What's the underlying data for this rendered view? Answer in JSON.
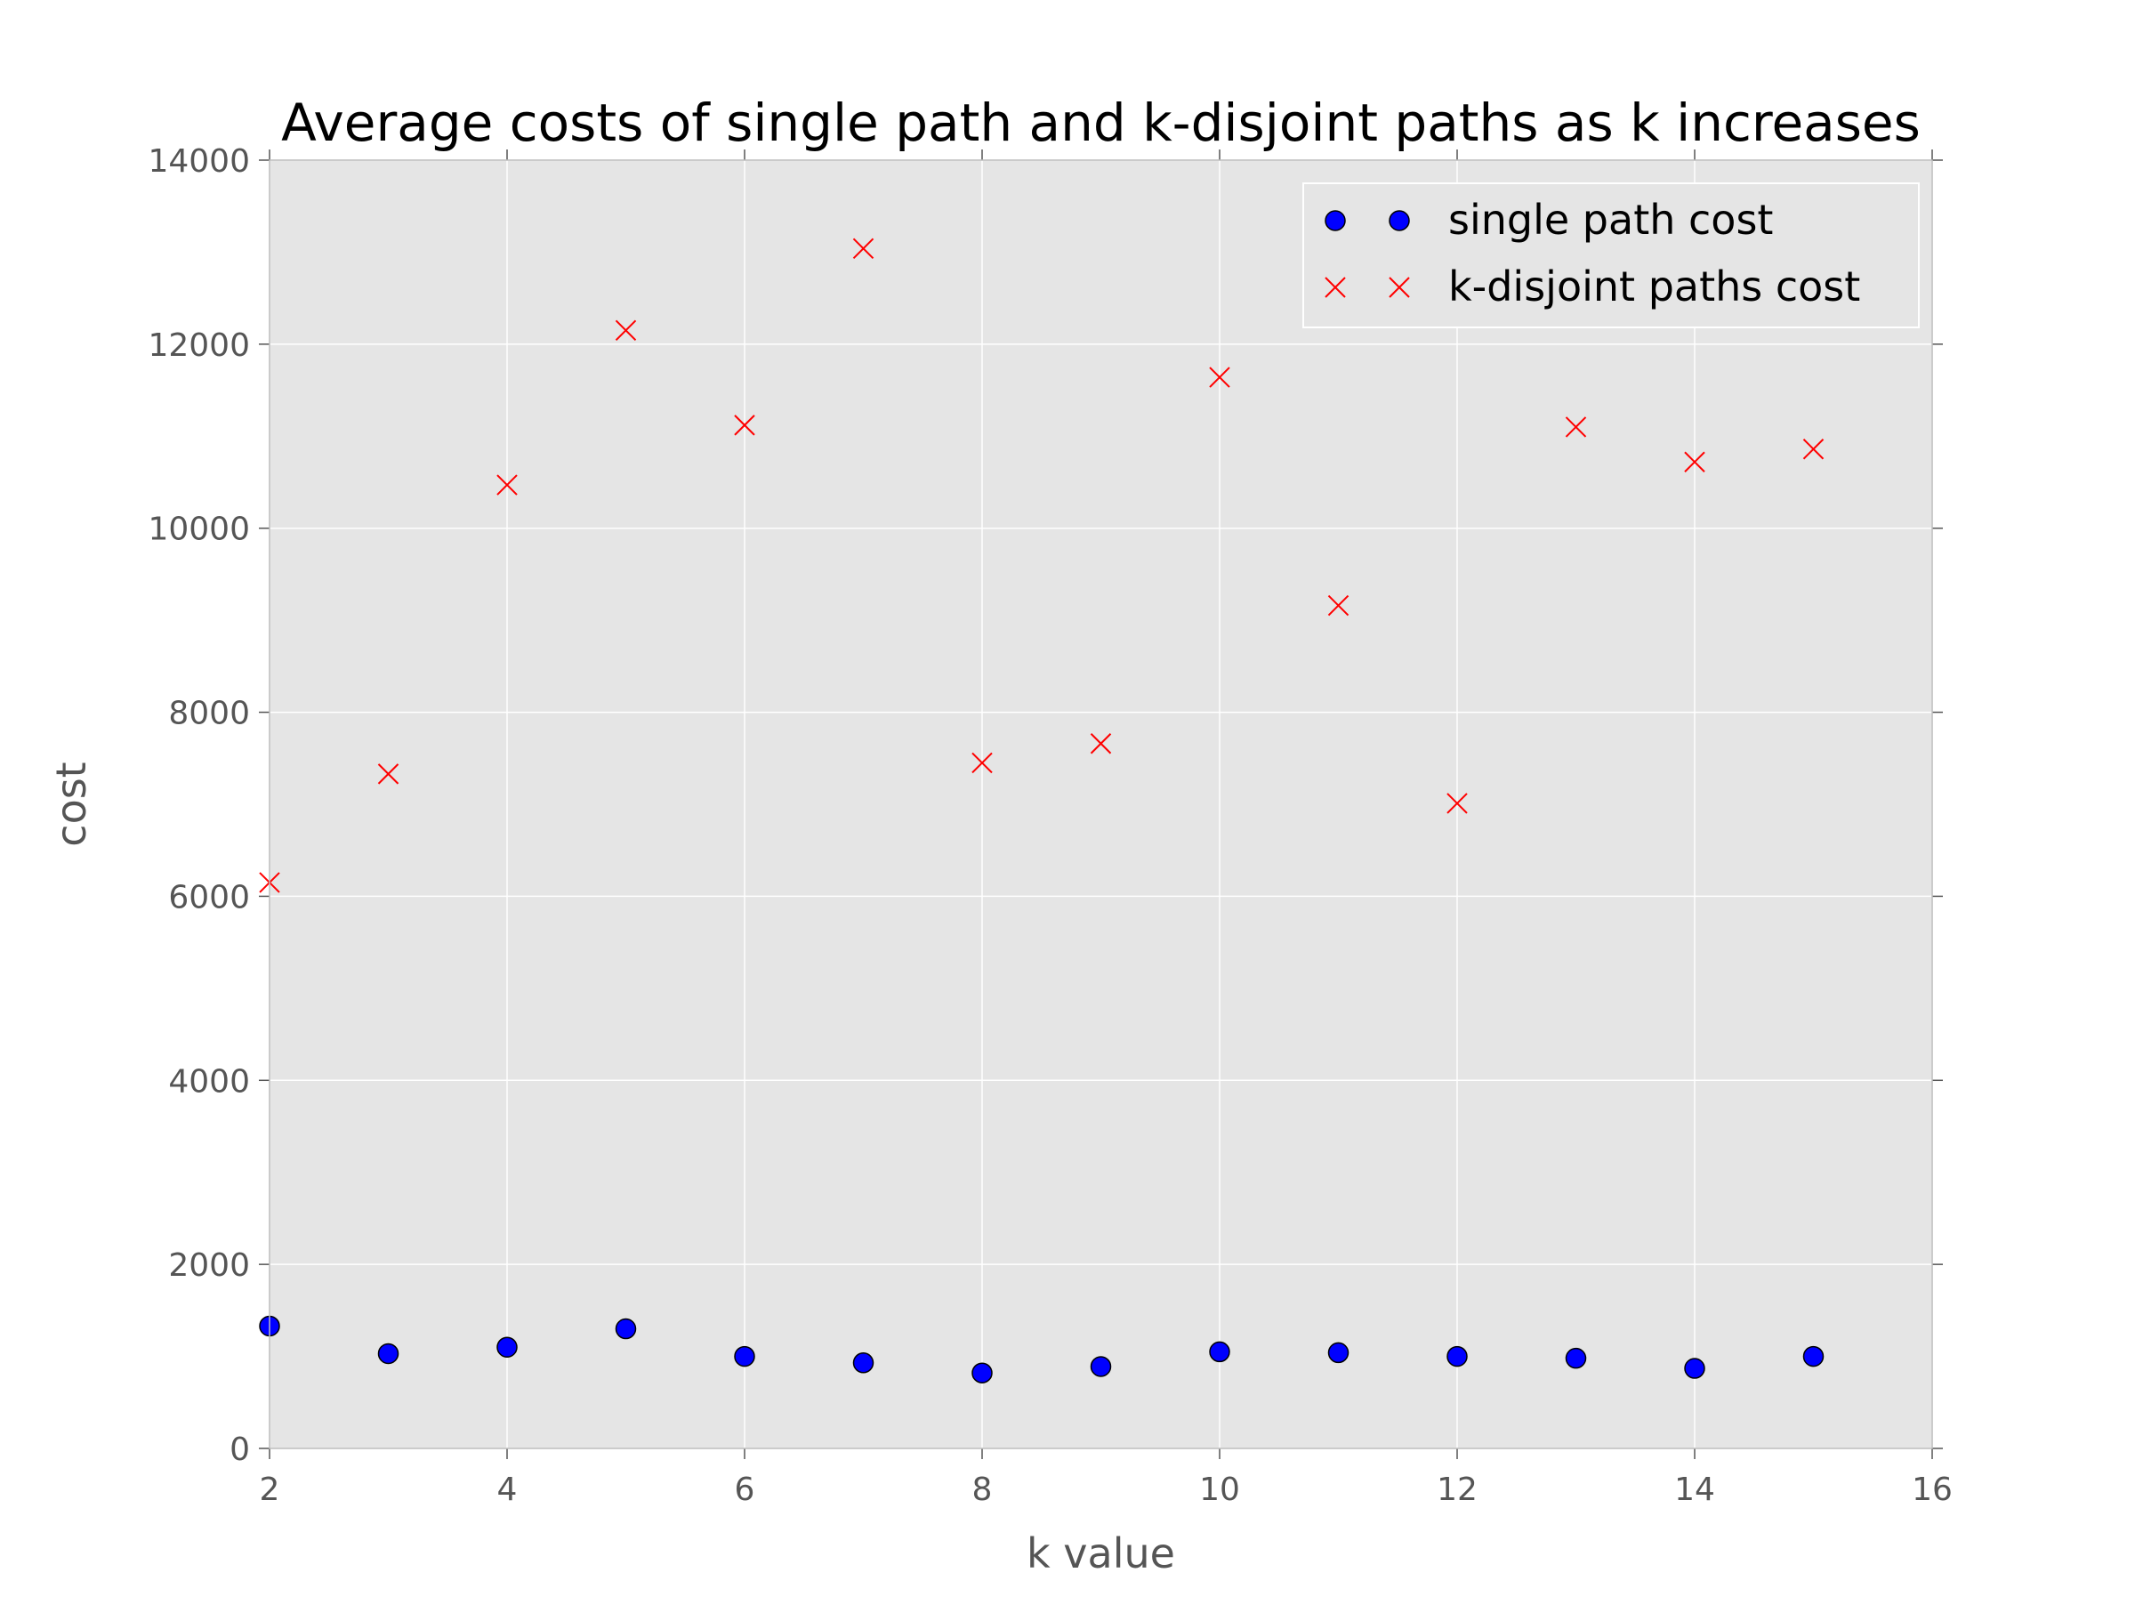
{
  "chart_data": {
    "type": "scatter",
    "title": "Average costs of single path and k-disjoint paths as k increases",
    "xlabel": "k value",
    "ylabel": "cost",
    "xlim": [
      2,
      16
    ],
    "ylim": [
      0,
      14000
    ],
    "xticks": [
      2,
      4,
      6,
      8,
      10,
      12,
      14,
      16
    ],
    "yticks": [
      0,
      2000,
      4000,
      6000,
      8000,
      10000,
      12000,
      14000
    ],
    "grid": true,
    "legend_position": "upper right",
    "background_color": "#e5e5e5",
    "series": [
      {
        "name": "single path cost",
        "marker": "circle",
        "color": "#0000ff",
        "x": [
          2,
          3,
          4,
          5,
          6,
          7,
          8,
          9,
          10,
          11,
          12,
          13,
          14,
          15
        ],
        "y": [
          1330,
          1030,
          1100,
          1300,
          1000,
          930,
          820,
          890,
          1050,
          1040,
          1000,
          980,
          870,
          1000
        ]
      },
      {
        "name": "k-disjoint paths cost",
        "marker": "x",
        "color": "#ff0000",
        "x": [
          2,
          3,
          4,
          5,
          6,
          7,
          8,
          9,
          10,
          11,
          12,
          13,
          14,
          15
        ],
        "y": [
          6150,
          7330,
          10470,
          12150,
          11120,
          13040,
          7450,
          7660,
          11640,
          9160,
          7010,
          11100,
          10720,
          10860
        ]
      }
    ]
  }
}
